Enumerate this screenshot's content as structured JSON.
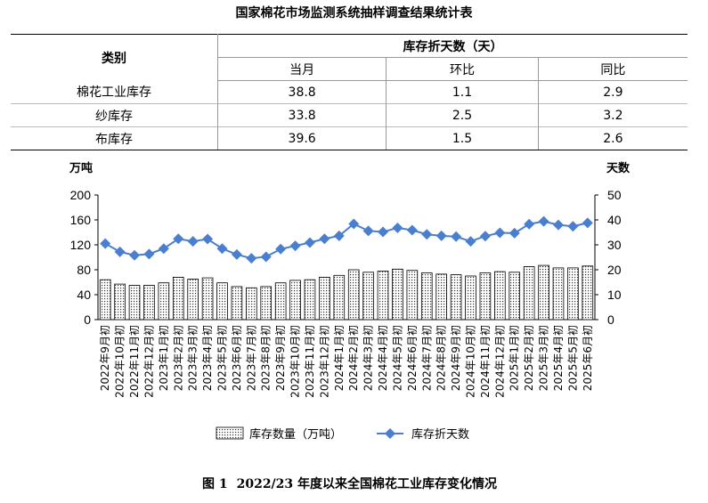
{
  "table": {
    "title": "国家棉花市场监测系统抽样调查结果统计表",
    "category_header": "类别",
    "group_header": "库存折天数（天）",
    "sub_headers": [
      "当月",
      "环比",
      "同比"
    ],
    "rows": [
      {
        "label": "棉花工业库存",
        "values": [
          "38.8",
          "1.1",
          "2.9"
        ]
      },
      {
        "label": "纱库存",
        "values": [
          "33.8",
          "2.5",
          "3.2"
        ]
      },
      {
        "label": "布库存",
        "values": [
          "39.6",
          "1.5",
          "2.6"
        ]
      }
    ]
  },
  "chart_data": {
    "type": "bar",
    "y_left_unit": "万吨",
    "y_right_unit": "天数",
    "ylim_left": [
      0,
      200
    ],
    "yticks_left": [
      0,
      40,
      80,
      120,
      160,
      200
    ],
    "ylim_right": [
      0,
      50
    ],
    "yticks_right": [
      0,
      10,
      20,
      30,
      40,
      50
    ],
    "categories": [
      "2022年9月初",
      "2022年10月初",
      "2022年11月初",
      "2022年12月初",
      "2023年1月初",
      "2023年2月初",
      "2023年3月初",
      "2023年4月初",
      "2023年5月初",
      "2023年6月初",
      "2023年7月初",
      "2023年8月初",
      "2023年9月初",
      "2023年10月初",
      "2023年11月初",
      "2023年12月初",
      "2024年1月初",
      "2024年2月初",
      "2024年3月初",
      "2024年4月初",
      "2024年5月初",
      "2024年6月初",
      "2024年7月初",
      "2024年8月初",
      "2024年9月初",
      "2024年10月初",
      "2024年11月初",
      "2024年12月初",
      "2025年1月初",
      "2025年2月初",
      "2025年3月初",
      "2025年4月初",
      "2025年5月初",
      "2025年6月初"
    ],
    "series": [
      {
        "name": "库存数量（万吨）",
        "type": "bar",
        "axis": "left",
        "values": [
          64,
          57,
          55,
          55,
          59,
          68,
          65,
          67,
          59,
          53,
          51,
          53,
          59,
          63,
          64,
          68,
          71,
          80,
          76,
          78,
          81,
          79,
          75,
          73,
          72,
          70,
          75,
          77,
          76,
          85,
          87,
          83,
          83,
          86
        ]
      },
      {
        "name": "库存折天数",
        "type": "line",
        "axis": "right",
        "color": "#4a7fd0",
        "values": [
          30.5,
          27.2,
          25.8,
          26.3,
          28.5,
          32.4,
          31.4,
          32.3,
          28.5,
          26.1,
          24.6,
          25.2,
          28.3,
          29.6,
          30.9,
          32.4,
          33.6,
          38.4,
          35.6,
          35.2,
          36.8,
          35.9,
          34.2,
          33.6,
          33.3,
          31.4,
          33.5,
          34.8,
          34.7,
          38.3,
          39.4,
          38.0,
          37.4,
          38.8
        ]
      }
    ]
  },
  "caption": {
    "number": "图 1",
    "text": "2022/23 年度以来全国棉花工业库存变化情况"
  }
}
